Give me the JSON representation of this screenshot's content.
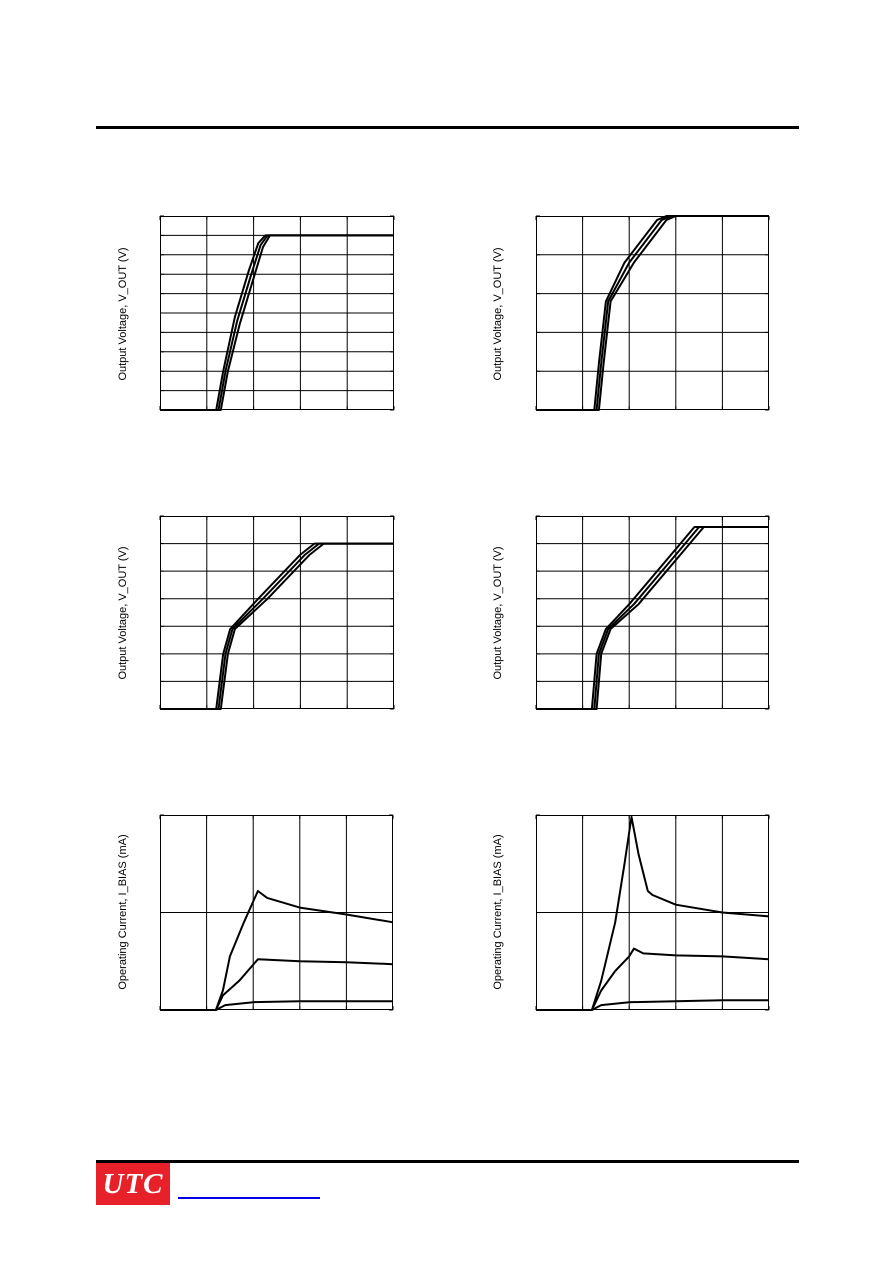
{
  "page": {
    "logo_text": "UTC",
    "accent_color": "#e8202a",
    "link_color": "#0000ee"
  },
  "chart_data": [
    {
      "type": "line",
      "title": "",
      "ylabel": "Output Voltage, V_OUT (V)",
      "xlim": [
        0,
        5
      ],
      "ylim": [
        0,
        10
      ],
      "x_ticks": [
        0,
        1,
        2,
        3,
        4,
        5
      ],
      "y_ticks": [
        0,
        1,
        2,
        3,
        4,
        5,
        6,
        7,
        8,
        9,
        10
      ],
      "grid": true,
      "series": [
        {
          "x": [
            0,
            1.2,
            1.35,
            1.6,
            1.9,
            2.1,
            2.25,
            5
          ],
          "y": [
            0,
            0,
            2.0,
            4.8,
            7.2,
            8.6,
            9.0,
            9.0
          ]
        },
        {
          "x": [
            0,
            1.25,
            1.4,
            1.65,
            1.95,
            2.15,
            2.3,
            5
          ],
          "y": [
            0,
            0,
            2.0,
            4.6,
            7.0,
            8.5,
            9.0,
            9.0
          ]
        },
        {
          "x": [
            0,
            1.3,
            1.45,
            1.7,
            2.0,
            2.2,
            2.35,
            5
          ],
          "y": [
            0,
            0,
            2.0,
            4.4,
            6.8,
            8.4,
            9.0,
            9.0
          ]
        }
      ]
    },
    {
      "type": "line",
      "title": "",
      "ylabel": "Output Voltage, V_OUT (V)",
      "xlim": [
        0,
        5
      ],
      "ylim": [
        0,
        5
      ],
      "x_ticks": [
        0,
        1,
        2,
        3,
        4,
        5
      ],
      "y_ticks": [
        0,
        1,
        2,
        3,
        4,
        5
      ],
      "grid": true,
      "series": [
        {
          "x": [
            0,
            1.25,
            1.35,
            1.5,
            1.9,
            2.6,
            2.8,
            5
          ],
          "y": [
            0,
            0,
            1.2,
            2.8,
            3.8,
            4.9,
            5.0,
            5.0
          ]
        },
        {
          "x": [
            0,
            1.3,
            1.4,
            1.55,
            2.0,
            2.7,
            2.9,
            5
          ],
          "y": [
            0,
            0,
            1.2,
            2.8,
            3.8,
            4.9,
            5.0,
            5.0
          ]
        },
        {
          "x": [
            0,
            1.35,
            1.45,
            1.6,
            2.1,
            2.8,
            3.0,
            5
          ],
          "y": [
            0,
            0,
            1.2,
            2.8,
            3.8,
            4.9,
            5.0,
            5.0
          ]
        }
      ]
    },
    {
      "type": "line",
      "title": "",
      "ylabel": "Output Voltage, V_OUT (V)",
      "xlim": [
        0,
        5
      ],
      "ylim": [
        0,
        7
      ],
      "x_ticks": [
        0,
        1,
        2,
        3,
        4,
        5
      ],
      "y_ticks": [
        0,
        1,
        2,
        3,
        4,
        5,
        6,
        7
      ],
      "grid": true,
      "series": [
        {
          "x": [
            0,
            1.2,
            1.35,
            1.5,
            2.1,
            3.0,
            3.3,
            5
          ],
          "y": [
            0,
            0,
            2.0,
            2.9,
            4.0,
            5.6,
            6.0,
            6.0
          ]
        },
        {
          "x": [
            0,
            1.25,
            1.4,
            1.55,
            2.2,
            3.1,
            3.4,
            5
          ],
          "y": [
            0,
            0,
            2.0,
            2.9,
            4.0,
            5.6,
            6.0,
            6.0
          ]
        },
        {
          "x": [
            0,
            1.3,
            1.45,
            1.6,
            2.3,
            3.2,
            3.5,
            5
          ],
          "y": [
            0,
            0,
            2.0,
            2.9,
            4.0,
            5.6,
            6.0,
            6.0
          ]
        }
      ]
    },
    {
      "type": "line",
      "title": "",
      "ylabel": "Output Voltage, V_OUT (V)",
      "xlim": [
        0,
        5
      ],
      "ylim": [
        0,
        7
      ],
      "x_ticks": [
        0,
        1,
        2,
        3,
        4,
        5
      ],
      "y_ticks": [
        0,
        1,
        2,
        3,
        4,
        5,
        6,
        7
      ],
      "grid": true,
      "series": [
        {
          "x": [
            0,
            1.2,
            1.3,
            1.5,
            2.0,
            3.0,
            3.4,
            5
          ],
          "y": [
            0,
            0,
            2.0,
            2.9,
            3.8,
            5.8,
            6.6,
            6.6
          ]
        },
        {
          "x": [
            0,
            1.25,
            1.35,
            1.55,
            2.1,
            3.1,
            3.5,
            5
          ],
          "y": [
            0,
            0,
            2.0,
            2.9,
            3.8,
            5.8,
            6.6,
            6.6
          ]
        },
        {
          "x": [
            0,
            1.3,
            1.4,
            1.6,
            2.2,
            3.2,
            3.6,
            5
          ],
          "y": [
            0,
            0,
            2.0,
            2.9,
            3.8,
            5.8,
            6.6,
            6.6
          ]
        }
      ]
    },
    {
      "type": "line",
      "title": "",
      "ylabel": "Operating Current, I_BIAS (mA)",
      "xlim": [
        0,
        5
      ],
      "ylim": [
        0,
        2
      ],
      "x_ticks": [
        0,
        1,
        2,
        3,
        4,
        5
      ],
      "y_ticks": [
        0,
        1,
        2
      ],
      "grid": true,
      "series": [
        {
          "x": [
            0,
            1.2,
            1.35,
            1.5,
            1.8,
            2.1,
            2.3,
            3.0,
            4.0,
            5.0
          ],
          "y": [
            0,
            0,
            0.2,
            0.55,
            0.9,
            1.22,
            1.15,
            1.05,
            0.98,
            0.9
          ]
        },
        {
          "x": [
            0,
            1.2,
            1.35,
            1.7,
            2.1,
            3.0,
            4.0,
            5.0
          ],
          "y": [
            0,
            0,
            0.15,
            0.3,
            0.52,
            0.5,
            0.49,
            0.47
          ]
        },
        {
          "x": [
            0,
            1.2,
            1.4,
            2.0,
            3.0,
            4.0,
            5.0
          ],
          "y": [
            0,
            0,
            0.05,
            0.08,
            0.09,
            0.09,
            0.09
          ]
        }
      ]
    },
    {
      "type": "line",
      "title": "",
      "ylabel": "Operating Current, I_BIAS (mA)",
      "xlim": [
        0,
        5
      ],
      "ylim": [
        0,
        2
      ],
      "x_ticks": [
        0,
        1,
        2,
        3,
        4,
        5
      ],
      "y_ticks": [
        0,
        1,
        2
      ],
      "grid": true,
      "series": [
        {
          "x": [
            0,
            1.2,
            1.4,
            1.7,
            1.9,
            2.05,
            2.2,
            2.4,
            2.5,
            3.0,
            4.0,
            5.0
          ],
          "y": [
            0,
            0,
            0.3,
            0.9,
            1.5,
            1.98,
            1.6,
            1.22,
            1.18,
            1.08,
            1.0,
            0.96
          ]
        },
        {
          "x": [
            0,
            1.2,
            1.4,
            1.7,
            2.0,
            2.1,
            2.3,
            3.0,
            4.0,
            5.0
          ],
          "y": [
            0,
            0,
            0.2,
            0.4,
            0.55,
            0.63,
            0.58,
            0.56,
            0.55,
            0.52
          ]
        },
        {
          "x": [
            0,
            1.2,
            1.4,
            2.0,
            3.0,
            4.0,
            5.0
          ],
          "y": [
            0,
            0,
            0.05,
            0.08,
            0.09,
            0.1,
            0.1
          ]
        }
      ]
    }
  ]
}
